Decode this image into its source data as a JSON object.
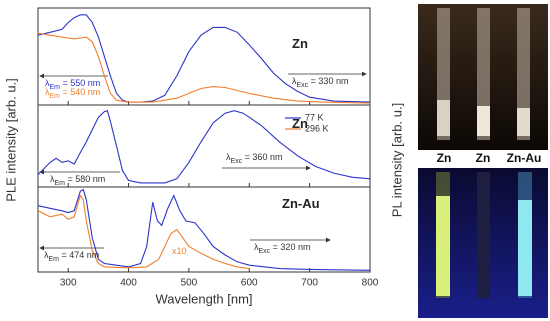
{
  "chart_data": [
    {
      "type": "line",
      "xlim": [
        250,
        800
      ],
      "ylim": [
        0,
        1
      ],
      "xticks": [
        300,
        400,
        500,
        600,
        700,
        800
      ],
      "series": [
        {
          "color": "#2b35c8",
          "x": [
            250,
            270,
            290,
            300,
            310,
            320,
            330,
            340,
            350,
            360,
            370,
            380,
            390,
            400,
            420,
            440,
            460,
            480,
            500,
            520,
            540,
            560,
            580,
            600,
            620,
            640,
            660,
            680,
            700,
            740,
            800
          ],
          "values": [
            0.72,
            0.75,
            0.78,
            0.85,
            0.9,
            0.93,
            0.93,
            0.85,
            0.7,
            0.5,
            0.3,
            0.12,
            0.05,
            0.03,
            0.03,
            0.04,
            0.1,
            0.3,
            0.55,
            0.72,
            0.8,
            0.8,
            0.75,
            0.62,
            0.48,
            0.33,
            0.22,
            0.14,
            0.08,
            0.04,
            0.03
          ]
        },
        {
          "color": "#f07f2e",
          "x": [
            250,
            270,
            290,
            310,
            330,
            340,
            350,
            360,
            370,
            380,
            400,
            440,
            480,
            520,
            540,
            560,
            600,
            640,
            680,
            720,
            800
          ],
          "values": [
            0.74,
            0.72,
            0.7,
            0.68,
            0.7,
            0.65,
            0.5,
            0.3,
            0.12,
            0.05,
            0.03,
            0.03,
            0.07,
            0.17,
            0.19,
            0.18,
            0.12,
            0.07,
            0.04,
            0.03,
            0.02
          ]
        }
      ],
      "annotations": [
        {
          "text": "Zn"
        },
        {
          "symbol": "λ",
          "sub": "Em",
          "text": " = 550 nm",
          "color": "#2b35c8"
        },
        {
          "symbol": "λ",
          "sub": "Em",
          "text": " = 540 nm",
          "color": "#f07f2e"
        },
        {
          "symbol": "λ",
          "sub": "Exc",
          "text": " = 330 nm",
          "color": "#333333"
        }
      ]
    },
    {
      "type": "line",
      "xlim": [
        250,
        800
      ],
      "ylim": [
        0,
        1
      ],
      "xticks": [
        300,
        400,
        500,
        600,
        700,
        800
      ],
      "series": [
        {
          "color": "#2b35c8",
          "x": [
            250,
            270,
            280,
            290,
            300,
            310,
            320,
            330,
            340,
            350,
            360,
            365,
            370,
            380,
            390,
            400,
            420,
            460,
            480,
            500,
            520,
            540,
            560,
            575,
            590,
            620,
            650,
            680,
            710,
            740,
            770,
            800
          ],
          "values": [
            0.15,
            0.3,
            0.35,
            0.3,
            0.32,
            0.28,
            0.42,
            0.55,
            0.7,
            0.85,
            0.92,
            0.93,
            0.8,
            0.5,
            0.2,
            0.08,
            0.05,
            0.05,
            0.1,
            0.3,
            0.55,
            0.78,
            0.9,
            0.93,
            0.9,
            0.75,
            0.55,
            0.38,
            0.25,
            0.17,
            0.12,
            0.1
          ]
        }
      ],
      "legend": [
        {
          "name": "77 K",
          "color": "#2b35c8"
        },
        {
          "name": "296 K",
          "color": "#f07f2e"
        }
      ],
      "annotations": [
        {
          "text": "Zn"
        },
        {
          "symbol": "λ",
          "sub": "Em",
          "text": " = 580 nm",
          "color": "#333333"
        },
        {
          "symbol": "λ",
          "sub": "Exc",
          "text": " = 360 nm",
          "color": "#333333"
        }
      ]
    },
    {
      "type": "line",
      "xlim": [
        250,
        800
      ],
      "ylim": [
        0,
        1
      ],
      "xticks": [
        300,
        400,
        500,
        600,
        700,
        800
      ],
      "xlabel": "Wavelength [nm]",
      "series": [
        {
          "color": "#2b35c8",
          "x": [
            250,
            270,
            290,
            300,
            310,
            320,
            325,
            330,
            340,
            350,
            360,
            380,
            400,
            420,
            430,
            440,
            448,
            455,
            465,
            475,
            485,
            495,
            510,
            525,
            540,
            560,
            580,
            600,
            650,
            700,
            800
          ],
          "values": [
            0.78,
            0.75,
            0.72,
            0.7,
            0.72,
            0.95,
            0.97,
            0.85,
            0.4,
            0.15,
            0.1,
            0.08,
            0.06,
            0.1,
            0.3,
            0.82,
            0.6,
            0.55,
            0.75,
            0.9,
            0.72,
            0.6,
            0.58,
            0.45,
            0.3,
            0.2,
            0.12,
            0.08,
            0.04,
            0.03,
            0.02
          ]
        },
        {
          "color": "#f07f2e",
          "x": [
            250,
            270,
            290,
            300,
            310,
            320,
            325,
            330,
            340,
            350,
            360,
            400,
            430,
            450,
            470,
            480,
            490,
            500,
            520,
            540,
            560,
            580,
            600
          ],
          "values": [
            0.72,
            0.65,
            0.68,
            0.62,
            0.65,
            0.9,
            0.85,
            0.6,
            0.25,
            0.1,
            0.06,
            0.05,
            0.06,
            0.15,
            0.45,
            0.5,
            0.4,
            0.3,
            0.22,
            0.15,
            0.1,
            0.06,
            0.04
          ]
        }
      ],
      "annotations": [
        {
          "text": "Zn-Au"
        },
        {
          "symbol": "λ",
          "sub": "Em",
          "text": " = 474 nm",
          "color": "#333333"
        },
        {
          "symbol": "λ",
          "sub": "Exc",
          "text": " = 320 nm",
          "color": "#333333"
        },
        {
          "text": "x10",
          "color": "#f07f2e"
        }
      ]
    }
  ],
  "ylabel": "PLE intensity [arb. u.]",
  "photo": {
    "ylabel": "PL intensity [arb. u.]",
    "labels": [
      "Zn",
      "Zn",
      "Zn-Au"
    ]
  }
}
